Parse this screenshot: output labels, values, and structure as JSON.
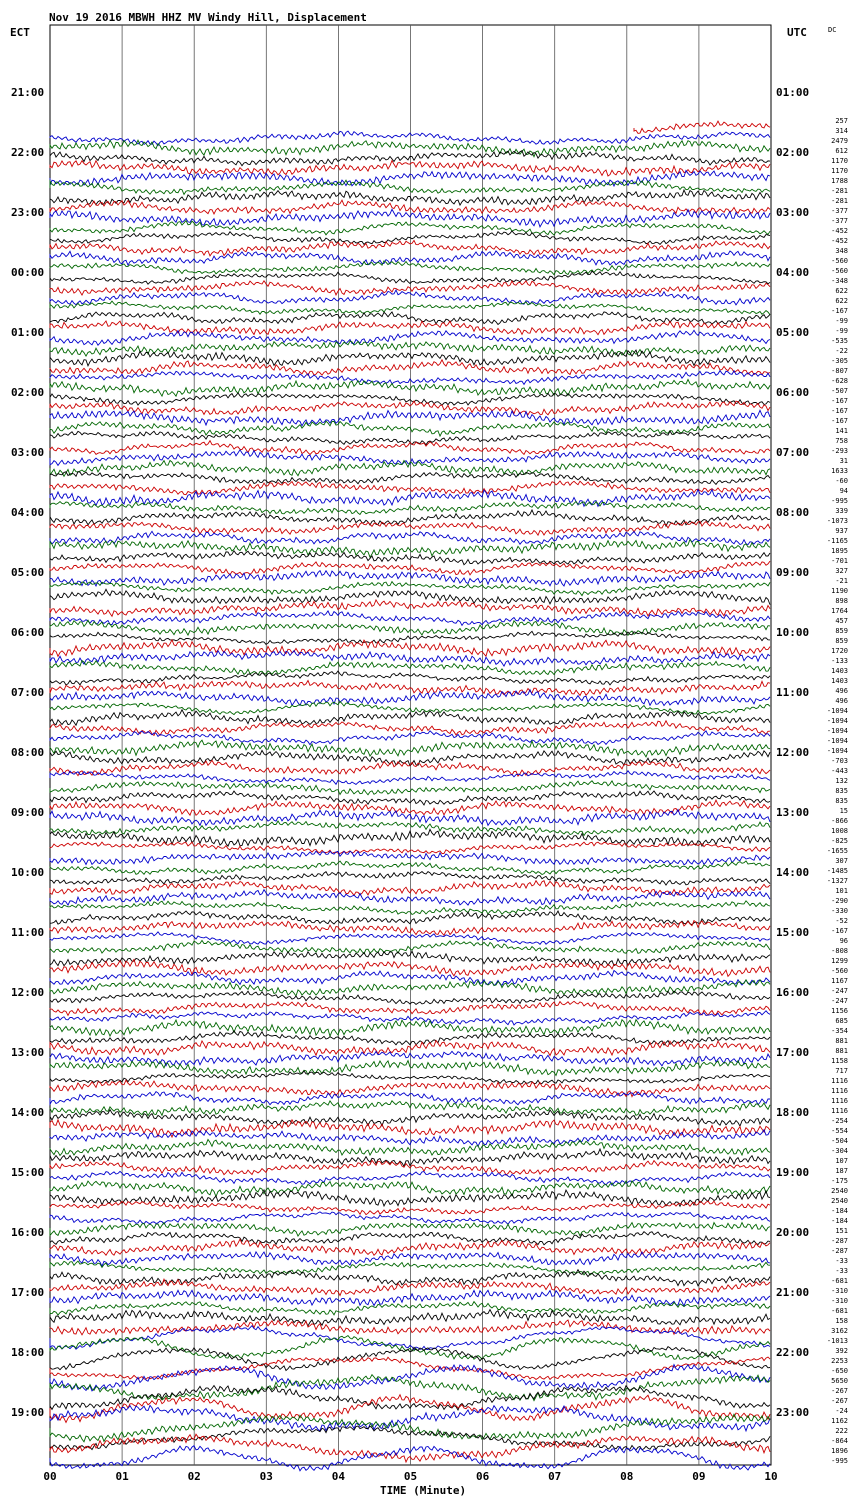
{
  "chart_data": {
    "type": "line",
    "title": "Nov 19 2016 MBWH HHZ MV Windy Hill, Displacement",
    "left_axis_label": "ECT",
    "right_axis_label": "UTC",
    "dc_label": "DC",
    "xlabel": "TIME (Minute)",
    "x_ticks": [
      "00",
      "01",
      "02",
      "03",
      "04",
      "05",
      "06",
      "07",
      "08",
      "09",
      "10"
    ],
    "left_times": [
      "21:00",
      "22:00",
      "23:00",
      "00:00",
      "01:00",
      "02:00",
      "03:00",
      "04:00",
      "05:00",
      "06:00",
      "07:00",
      "08:00",
      "09:00",
      "10:00",
      "11:00",
      "12:00",
      "13:00",
      "14:00",
      "15:00",
      "16:00",
      "17:00",
      "18:00",
      "19:00"
    ],
    "right_times": [
      "01:00",
      "02:00",
      "03:00",
      "04:00",
      "05:00",
      "06:00",
      "07:00",
      "08:00",
      "09:00",
      "10:00",
      "11:00",
      "12:00",
      "13:00",
      "14:00",
      "15:00",
      "16:00",
      "17:00",
      "18:00",
      "19:00",
      "20:00",
      "21:00",
      "22:00",
      "23:00"
    ],
    "trace_colors": [
      "#cc0000",
      "#0000cc",
      "#006600",
      "#000000"
    ],
    "dc_offsets": [
      "257",
      "314",
      "2479",
      "612",
      "1170",
      "1170",
      "1788",
      "-281",
      "-281",
      "-377",
      "-377",
      "-452",
      "-452",
      "348",
      "-560",
      "-560",
      "-348",
      "622",
      "622",
      "-167",
      "-99",
      "-99",
      "-535",
      "-22",
      "-305",
      "-807",
      "-628",
      "-507",
      "-167",
      "-167",
      "-167",
      "141",
      "758",
      "-293",
      "31",
      "1633",
      "-60",
      "94",
      "-995",
      "339",
      "-1073",
      "937",
      "-1165",
      "1895",
      "-701",
      "327",
      "-21",
      "1190",
      "898",
      "1764",
      "457",
      "859",
      "859",
      "1720",
      "-133",
      "1403",
      "1403",
      "496",
      "496",
      "-1094",
      "-1094",
      "-1094",
      "-1094",
      "-1094",
      "-703",
      "-443",
      "132",
      "835",
      "835",
      "15",
      "-866",
      "1008",
      "-825",
      "-1655",
      "307",
      "-1485",
      "-1327",
      "101",
      "-290",
      "-330",
      "-52",
      "-167",
      "96",
      "-808",
      "1299",
      "-560",
      "1167",
      "-247",
      "-247",
      "1156",
      "685",
      "-354",
      "881",
      "881",
      "1158",
      "717",
      "1116",
      "1116",
      "1116",
      "1116",
      "-254",
      "-554",
      "-504",
      "-304",
      "107",
      "187",
      "-175",
      "2540",
      "2540",
      "-184",
      "-184",
      "151",
      "-287",
      "-287",
      "-33",
      "-33",
      "-681",
      "-310",
      "-310",
      "-681",
      "158",
      "3162",
      "-1013",
      "392",
      "2253",
      "-650",
      "5650",
      "-267",
      "-267",
      "-24",
      "1162",
      "222",
      "-864",
      "1896",
      "-995"
    ]
  }
}
